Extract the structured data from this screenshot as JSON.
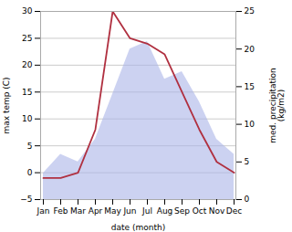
{
  "chart_data": {
    "type": "line",
    "categories": [
      "Jan",
      "Feb",
      "Mar",
      "Apr",
      "May",
      "Jun",
      "Jul",
      "Aug",
      "Sep",
      "Oct",
      "Nov",
      "Dec"
    ],
    "series": [
      {
        "type": "area",
        "axis": "y2",
        "color": "#aab4e8",
        "values": [
          3.5,
          6,
          5,
          8,
          14,
          20,
          21,
          16,
          17,
          13,
          8,
          6
        ]
      },
      {
        "type": "line",
        "color": "#b03040",
        "values": [
          -1,
          -1,
          0,
          8,
          30,
          25,
          24,
          22,
          15,
          8,
          2,
          0
        ]
      }
    ],
    "xlabel": "date (month)",
    "ylabel": "max temp (C)",
    "y2label": "med. precipitation\n(kg/m2)",
    "ylim": [
      -5,
      30
    ],
    "yticks": [
      -5,
      0,
      5,
      10,
      15,
      20,
      25,
      30
    ],
    "y2lim": [
      0,
      25
    ],
    "y2ticks": [
      0,
      5,
      10,
      15,
      20,
      25
    ],
    "grid": true
  }
}
